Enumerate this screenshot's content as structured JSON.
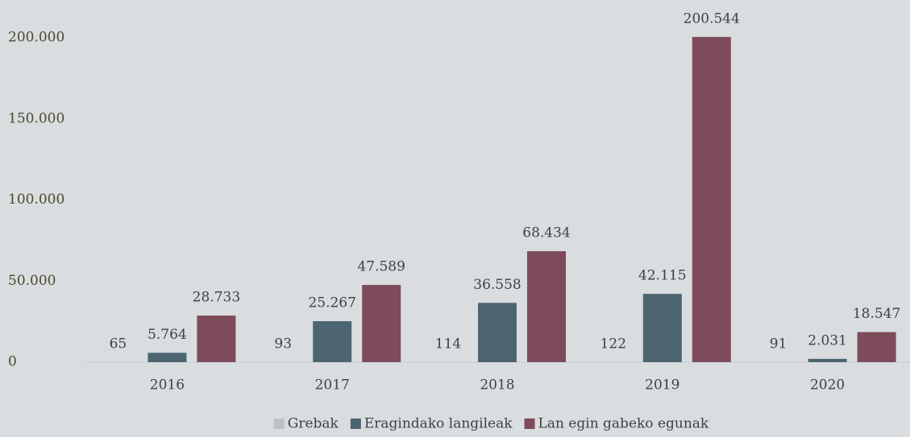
{
  "chart_data": {
    "type": "bar",
    "categories": [
      "2016",
      "2017",
      "2018",
      "2019",
      "2020"
    ],
    "series": [
      {
        "name": "Grebak",
        "color": "#bfc0c2",
        "values": [
          65,
          93,
          114,
          122,
          91
        ]
      },
      {
        "name": "Eragindako langileak",
        "color": "#4d6570",
        "values": [
          5764,
          25267,
          36558,
          42115,
          2031
        ],
        "value_labels": [
          "5.764",
          "25.267",
          "36.558",
          "42.115",
          "2.031"
        ]
      },
      {
        "name": "Lan egin gabeko egunak",
        "color": "#7e4b5a",
        "values": [
          28733,
          47589,
          68434,
          200544,
          18547
        ],
        "value_labels": [
          "28.733",
          "47.589",
          "68.434",
          "200.544",
          "18.547"
        ]
      }
    ],
    "ylim": [
      0,
      200000
    ],
    "yticks": [
      0,
      {
        "value": 50000,
        "label": "50.000"
      },
      {
        "value": 100000,
        "label": "100.000"
      },
      {
        "value": 150000,
        "label": "150.000"
      },
      {
        "value": 200000,
        "label": "200.000"
      }
    ],
    "grid": false,
    "legend": "bottom"
  }
}
